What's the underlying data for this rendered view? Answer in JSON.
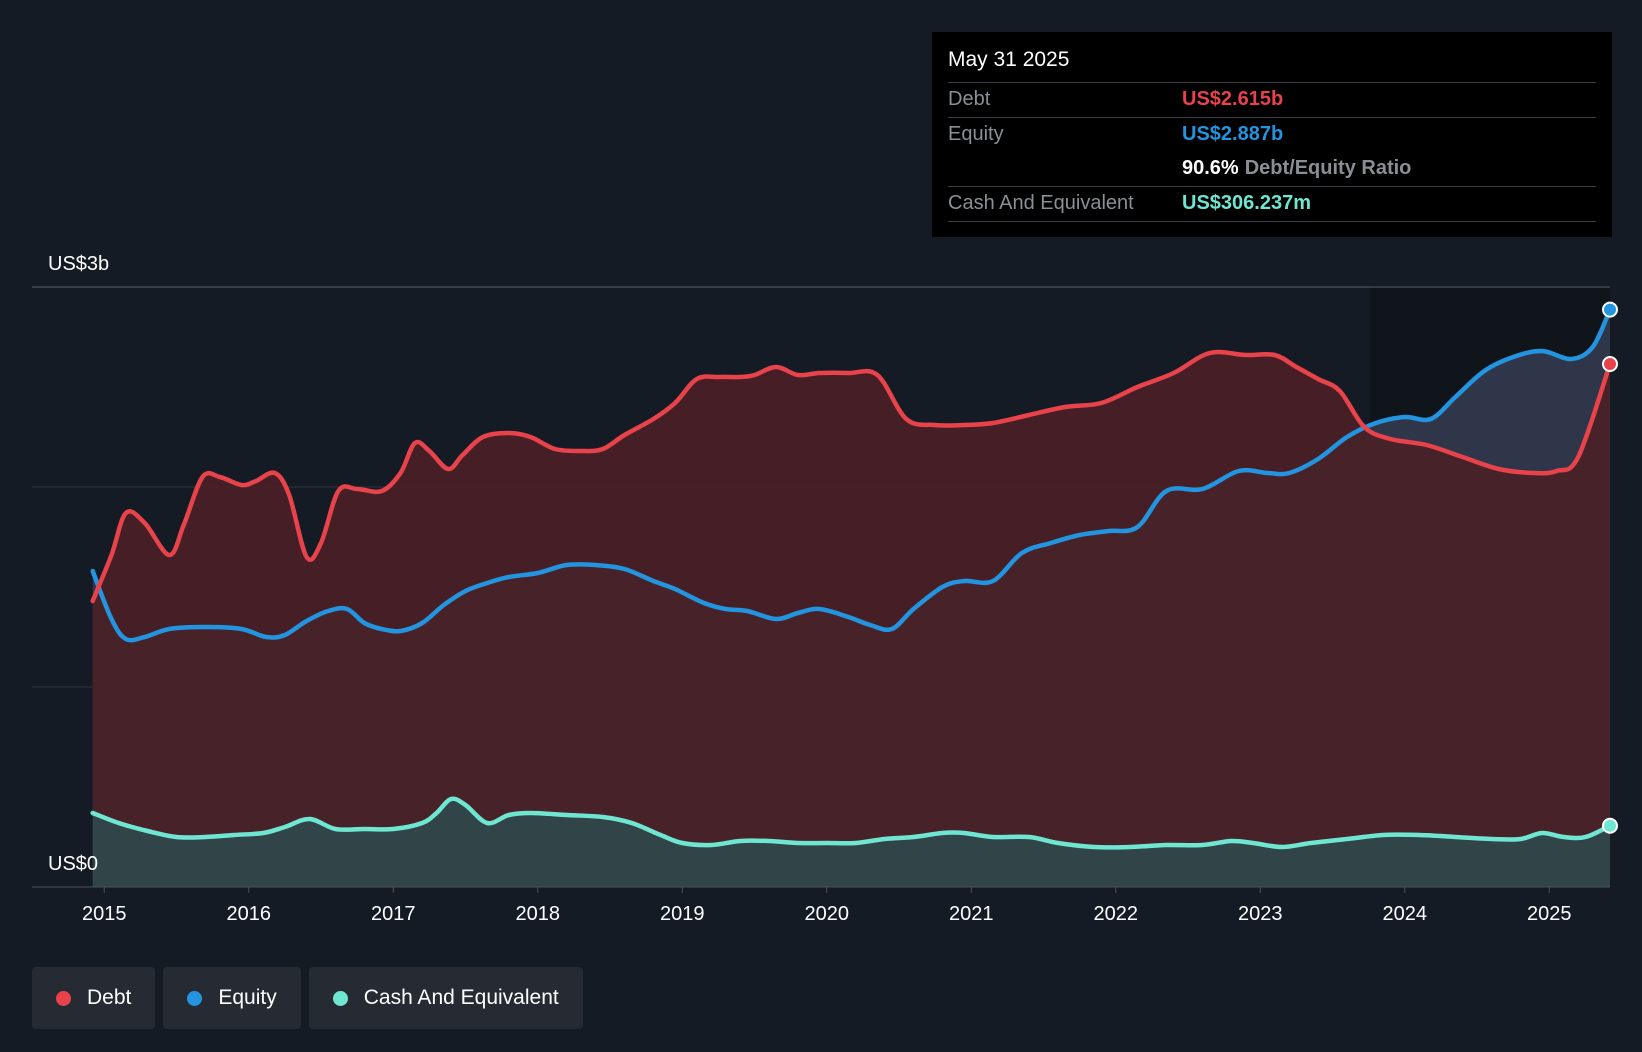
{
  "chart_data": {
    "type": "area",
    "y_top_label": "US$3b",
    "y_bottom_label": "US$0",
    "ylim": [
      0,
      3
    ],
    "x_ticks": [
      "2015",
      "2016",
      "2017",
      "2018",
      "2019",
      "2020",
      "2021",
      "2022",
      "2023",
      "2024",
      "2025"
    ],
    "xlim": [
      2014.5,
      2025.42
    ],
    "series": [
      {
        "name": "Debt",
        "color": "#e8424a",
        "fill": "#4a2026",
        "points": [
          [
            2014.92,
            1.43
          ],
          [
            2015.05,
            1.66
          ],
          [
            2015.15,
            1.87
          ],
          [
            2015.28,
            1.82
          ],
          [
            2015.45,
            1.66
          ],
          [
            2015.55,
            1.81
          ],
          [
            2015.68,
            2.05
          ],
          [
            2015.8,
            2.05
          ],
          [
            2015.95,
            2.01
          ],
          [
            2016.05,
            2.03
          ],
          [
            2016.18,
            2.07
          ],
          [
            2016.28,
            1.96
          ],
          [
            2016.4,
            1.65
          ],
          [
            2016.5,
            1.72
          ],
          [
            2016.62,
            1.98
          ],
          [
            2016.75,
            1.99
          ],
          [
            2016.92,
            1.98
          ],
          [
            2017.05,
            2.07
          ],
          [
            2017.15,
            2.22
          ],
          [
            2017.25,
            2.18
          ],
          [
            2017.38,
            2.09
          ],
          [
            2017.48,
            2.16
          ],
          [
            2017.62,
            2.25
          ],
          [
            2017.8,
            2.27
          ],
          [
            2017.95,
            2.25
          ],
          [
            2018.12,
            2.19
          ],
          [
            2018.3,
            2.18
          ],
          [
            2018.45,
            2.19
          ],
          [
            2018.6,
            2.26
          ],
          [
            2018.8,
            2.34
          ],
          [
            2018.95,
            2.42
          ],
          [
            2019.1,
            2.54
          ],
          [
            2019.25,
            2.55
          ],
          [
            2019.4,
            2.55
          ],
          [
            2019.5,
            2.56
          ],
          [
            2019.65,
            2.6
          ],
          [
            2019.8,
            2.56
          ],
          [
            2019.95,
            2.57
          ],
          [
            2020.15,
            2.57
          ],
          [
            2020.35,
            2.56
          ],
          [
            2020.55,
            2.34
          ],
          [
            2020.75,
            2.31
          ],
          [
            2020.95,
            2.31
          ],
          [
            2021.15,
            2.32
          ],
          [
            2021.4,
            2.36
          ],
          [
            2021.65,
            2.4
          ],
          [
            2021.9,
            2.42
          ],
          [
            2022.15,
            2.5
          ],
          [
            2022.4,
            2.57
          ],
          [
            2022.65,
            2.67
          ],
          [
            2022.9,
            2.66
          ],
          [
            2023.1,
            2.66
          ],
          [
            2023.25,
            2.6
          ],
          [
            2023.4,
            2.54
          ],
          [
            2023.55,
            2.48
          ],
          [
            2023.72,
            2.3
          ],
          [
            2023.9,
            2.24
          ],
          [
            2024.15,
            2.21
          ],
          [
            2024.4,
            2.15
          ],
          [
            2024.65,
            2.09
          ],
          [
            2024.9,
            2.07
          ],
          [
            2025.05,
            2.08
          ],
          [
            2025.2,
            2.15
          ],
          [
            2025.42,
            2.615
          ]
        ]
      },
      {
        "name": "Equity",
        "color": "#2394df",
        "fill": "#343a50",
        "points": [
          [
            2014.92,
            1.58
          ],
          [
            2015.05,
            1.34
          ],
          [
            2015.15,
            1.24
          ],
          [
            2015.28,
            1.25
          ],
          [
            2015.45,
            1.29
          ],
          [
            2015.7,
            1.3
          ],
          [
            2015.95,
            1.29
          ],
          [
            2016.12,
            1.25
          ],
          [
            2016.25,
            1.26
          ],
          [
            2016.4,
            1.33
          ],
          [
            2016.55,
            1.38
          ],
          [
            2016.68,
            1.39
          ],
          [
            2016.8,
            1.32
          ],
          [
            2016.92,
            1.29
          ],
          [
            2017.05,
            1.28
          ],
          [
            2017.2,
            1.32
          ],
          [
            2017.35,
            1.41
          ],
          [
            2017.5,
            1.48
          ],
          [
            2017.65,
            1.52
          ],
          [
            2017.8,
            1.55
          ],
          [
            2018.0,
            1.57
          ],
          [
            2018.2,
            1.61
          ],
          [
            2018.4,
            1.61
          ],
          [
            2018.6,
            1.59
          ],
          [
            2018.8,
            1.53
          ],
          [
            2018.95,
            1.49
          ],
          [
            2019.15,
            1.42
          ],
          [
            2019.3,
            1.39
          ],
          [
            2019.45,
            1.38
          ],
          [
            2019.65,
            1.34
          ],
          [
            2019.8,
            1.37
          ],
          [
            2019.95,
            1.39
          ],
          [
            2020.15,
            1.35
          ],
          [
            2020.3,
            1.31
          ],
          [
            2020.45,
            1.29
          ],
          [
            2020.6,
            1.39
          ],
          [
            2020.8,
            1.5
          ],
          [
            2020.95,
            1.53
          ],
          [
            2021.15,
            1.53
          ],
          [
            2021.35,
            1.67
          ],
          [
            2021.55,
            1.72
          ],
          [
            2021.75,
            1.76
          ],
          [
            2021.95,
            1.78
          ],
          [
            2022.15,
            1.8
          ],
          [
            2022.35,
            1.98
          ],
          [
            2022.6,
            1.99
          ],
          [
            2022.85,
            2.08
          ],
          [
            2023.05,
            2.07
          ],
          [
            2023.2,
            2.07
          ],
          [
            2023.4,
            2.14
          ],
          [
            2023.6,
            2.25
          ],
          [
            2023.8,
            2.32
          ],
          [
            2024.0,
            2.35
          ],
          [
            2024.18,
            2.34
          ],
          [
            2024.35,
            2.45
          ],
          [
            2024.55,
            2.58
          ],
          [
            2024.75,
            2.65
          ],
          [
            2024.95,
            2.68
          ],
          [
            2025.15,
            2.64
          ],
          [
            2025.3,
            2.7
          ],
          [
            2025.42,
            2.887
          ]
        ]
      },
      {
        "name": "Cash And Equivalent",
        "color": "#6ee6d1",
        "fill": "#2e4a4d",
        "points": [
          [
            2014.92,
            0.37
          ],
          [
            2015.1,
            0.32
          ],
          [
            2015.3,
            0.28
          ],
          [
            2015.5,
            0.25
          ],
          [
            2015.7,
            0.25
          ],
          [
            2015.9,
            0.26
          ],
          [
            2016.1,
            0.27
          ],
          [
            2016.25,
            0.3
          ],
          [
            2016.42,
            0.34
          ],
          [
            2016.6,
            0.29
          ],
          [
            2016.8,
            0.29
          ],
          [
            2017.0,
            0.29
          ],
          [
            2017.2,
            0.32
          ],
          [
            2017.3,
            0.37
          ],
          [
            2017.4,
            0.44
          ],
          [
            2017.5,
            0.41
          ],
          [
            2017.65,
            0.32
          ],
          [
            2017.8,
            0.36
          ],
          [
            2017.95,
            0.37
          ],
          [
            2018.2,
            0.36
          ],
          [
            2018.45,
            0.35
          ],
          [
            2018.65,
            0.32
          ],
          [
            2018.85,
            0.26
          ],
          [
            2019.0,
            0.22
          ],
          [
            2019.2,
            0.21
          ],
          [
            2019.4,
            0.23
          ],
          [
            2019.6,
            0.23
          ],
          [
            2019.8,
            0.22
          ],
          [
            2020.0,
            0.22
          ],
          [
            2020.2,
            0.22
          ],
          [
            2020.4,
            0.24
          ],
          [
            2020.6,
            0.25
          ],
          [
            2020.8,
            0.27
          ],
          [
            2020.95,
            0.27
          ],
          [
            2021.15,
            0.25
          ],
          [
            2021.4,
            0.25
          ],
          [
            2021.6,
            0.22
          ],
          [
            2021.85,
            0.2
          ],
          [
            2022.1,
            0.2
          ],
          [
            2022.35,
            0.21
          ],
          [
            2022.6,
            0.21
          ],
          [
            2022.8,
            0.23
          ],
          [
            2022.95,
            0.22
          ],
          [
            2023.15,
            0.2
          ],
          [
            2023.35,
            0.22
          ],
          [
            2023.6,
            0.24
          ],
          [
            2023.85,
            0.26
          ],
          [
            2024.1,
            0.26
          ],
          [
            2024.35,
            0.25
          ],
          [
            2024.6,
            0.24
          ],
          [
            2024.8,
            0.24
          ],
          [
            2024.95,
            0.27
          ],
          [
            2025.1,
            0.25
          ],
          [
            2025.25,
            0.25
          ],
          [
            2025.42,
            0.306237
          ]
        ]
      }
    ]
  },
  "tooltip": {
    "date": "May 31 2025",
    "debt_label": "Debt",
    "debt_value": "US$2.615b",
    "equity_label": "Equity",
    "equity_value": "US$2.887b",
    "ratio_value": "90.6%",
    "ratio_label": "Debt/Equity Ratio",
    "cash_label": "Cash And Equivalent",
    "cash_value": "US$306.237m"
  },
  "legend": {
    "debt": "Debt",
    "equity": "Equity",
    "cash": "Cash And Equivalent"
  },
  "colors": {
    "debt": "#e8424a",
    "equity": "#2394df",
    "cash": "#6ee6d1"
  }
}
